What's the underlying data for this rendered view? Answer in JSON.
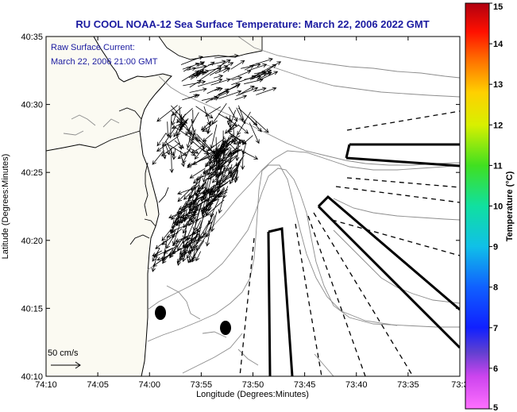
{
  "title": "RU COOL   NOAA-12  Sea Surface Temperature:  March 22, 2006 2022 GMT",
  "annotation": {
    "line1": "Raw Surface Current:",
    "line2": "March 22, 2006 21:00 GMT"
  },
  "scale_label": "50 cm/s",
  "axes": {
    "xlabel": "Longitude (Degrees:Minutes)",
    "ylabel": "Latitude (Degrees:Minutes)",
    "x_ticks": [
      "74:10",
      "74:05",
      "74:00",
      "73:55",
      "73:50",
      "73:45",
      "73:40",
      "73:35",
      "73:3"
    ],
    "y_ticks": [
      "40:35",
      "40:30",
      "40:25",
      "40:20",
      "40:15",
      "40:10"
    ]
  },
  "colorbar": {
    "label": "Temperature (°C)",
    "ticks": [
      "15",
      "14",
      "13",
      "12",
      "11",
      "10",
      "9",
      "8",
      "7",
      "6",
      "5"
    ],
    "range": [
      5,
      15
    ]
  },
  "colors": {
    "title": "#1a1aa0",
    "land": "#fbfaf2",
    "water": "#ffffff",
    "contour": "#8c8c8c",
    "coast": "#000000"
  },
  "features": {
    "hf_radar_sites": 2,
    "shipping_lanes": 3,
    "vector_field": "surface-current-arrows"
  }
}
